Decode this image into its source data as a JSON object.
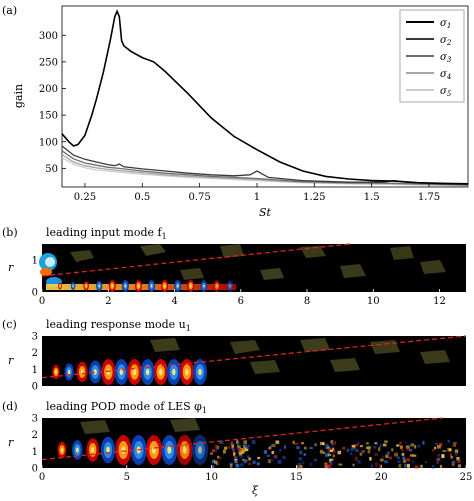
{
  "panel_labels": {
    "a": "(a)",
    "b": "(b)",
    "c": "(c)",
    "d": "(d)"
  },
  "chart_data": [
    {
      "type": "line",
      "xlabel": "St",
      "ylabel": "gain",
      "xlim": [
        0.15,
        1.92
      ],
      "ylim": [
        15,
        355
      ],
      "x_ticks": [
        "0.25",
        "0.5",
        "0.75",
        "1",
        "1.25",
        "1.5",
        "1.75"
      ],
      "y_ticks": [
        "50",
        "100",
        "150",
        "200",
        "250",
        "300"
      ],
      "legend_position": "top-right",
      "grid": false,
      "series": [
        {
          "name": "σ1",
          "color": "#000000",
          "x": [
            0.15,
            0.18,
            0.2,
            0.22,
            0.25,
            0.28,
            0.3,
            0.33,
            0.36,
            0.38,
            0.39,
            0.4,
            0.41,
            0.42,
            0.45,
            0.5,
            0.55,
            0.6,
            0.7,
            0.8,
            0.9,
            1.0,
            1.1,
            1.2,
            1.3,
            1.4,
            1.5,
            1.6,
            1.7,
            1.8,
            1.92
          ],
          "y": [
            115,
            100,
            92,
            95,
            112,
            150,
            180,
            230,
            290,
            335,
            345,
            335,
            290,
            280,
            270,
            258,
            250,
            232,
            190,
            145,
            110,
            85,
            62,
            45,
            35,
            30,
            27,
            26,
            23,
            22,
            21
          ]
        },
        {
          "name": "σ2",
          "color": "#3a3a3a",
          "x": [
            0.15,
            0.2,
            0.25,
            0.3,
            0.35,
            0.38,
            0.4,
            0.42,
            0.5,
            0.6,
            0.7,
            0.8,
            0.9,
            0.97,
            1.0,
            1.05,
            1.2,
            1.4,
            1.55,
            1.6,
            1.65,
            1.8,
            1.92
          ],
          "y": [
            92,
            75,
            67,
            62,
            57,
            55,
            58,
            53,
            49,
            45,
            41,
            38,
            36,
            38,
            45,
            33,
            27,
            24,
            24,
            27,
            24,
            21,
            20
          ]
        },
        {
          "name": "σ3",
          "color": "#6e6e6e",
          "x": [
            0.15,
            0.2,
            0.25,
            0.3,
            0.35,
            0.4,
            0.5,
            0.6,
            0.7,
            0.8,
            0.9,
            1.0,
            1.1,
            1.2,
            1.4,
            1.6,
            1.8,
            1.92
          ],
          "y": [
            83,
            68,
            60,
            56,
            52,
            50,
            45,
            41,
            38,
            35,
            33,
            31,
            28,
            25,
            23,
            22,
            20,
            19
          ]
        },
        {
          "name": "σ4",
          "color": "#a6a6a6",
          "x": [
            0.15,
            0.2,
            0.25,
            0.3,
            0.35,
            0.4,
            0.5,
            0.6,
            0.7,
            0.8,
            0.9,
            1.0,
            1.1,
            1.2,
            1.4,
            1.6,
            1.8,
            1.92
          ],
          "y": [
            76,
            62,
            55,
            51,
            48,
            46,
            42,
            38,
            35,
            33,
            31,
            29,
            26,
            24,
            22,
            21,
            19,
            18
          ]
        },
        {
          "name": "σ5",
          "color": "#cdcdcd",
          "x": [
            0.15,
            0.2,
            0.25,
            0.3,
            0.35,
            0.4,
            0.5,
            0.6,
            0.7,
            0.8,
            0.9,
            1.0,
            1.1,
            1.2,
            1.4,
            1.6,
            1.8,
            1.92
          ],
          "y": [
            70,
            58,
            51,
            47,
            45,
            43,
            39,
            36,
            33,
            31,
            29,
            27,
            25,
            23,
            21,
            20,
            18,
            17
          ]
        }
      ]
    },
    {
      "type": "heatmap",
      "title": "leading input mode f",
      "title_subscript": "1",
      "xlabel": "",
      "ylabel": "r",
      "xlim": [
        0,
        12.8
      ],
      "ylim": [
        0,
        1.5
      ],
      "x_ticks": [
        "0",
        "2",
        "4",
        "6",
        "8",
        "10",
        "12"
      ],
      "y_ticks": [
        "0",
        "1"
      ],
      "reference_line": {
        "style": "dashed",
        "color": "#dd2222",
        "x": [
          0,
          9.3
        ],
        "y": [
          0.5,
          1.5
        ]
      }
    },
    {
      "type": "heatmap",
      "title": "leading response mode u",
      "title_subscript": "1",
      "xlabel": "",
      "ylabel": "r",
      "xlim": [
        0,
        25
      ],
      "ylim": [
        0,
        3
      ],
      "x_ticks": [],
      "y_ticks": [
        "0",
        "1",
        "2",
        "3"
      ],
      "reference_line": {
        "style": "dashed",
        "color": "#dd2222",
        "x": [
          0,
          25
        ],
        "y": [
          0.5,
          3.0
        ]
      }
    },
    {
      "type": "heatmap",
      "title": "leading POD mode of LES φ",
      "title_subscript": "1",
      "xlabel": "ξ",
      "ylabel": "r",
      "xlim": [
        0,
        25
      ],
      "ylim": [
        0,
        3
      ],
      "x_ticks": [
        "0",
        "5",
        "10",
        "15",
        "20",
        "25"
      ],
      "y_ticks": [
        "0",
        "1",
        "2",
        "3"
      ],
      "reference_line": {
        "style": "dashed",
        "color": "#dd2222",
        "x": [
          0,
          23.6
        ],
        "y": [
          0.5,
          3.0
        ]
      }
    }
  ]
}
